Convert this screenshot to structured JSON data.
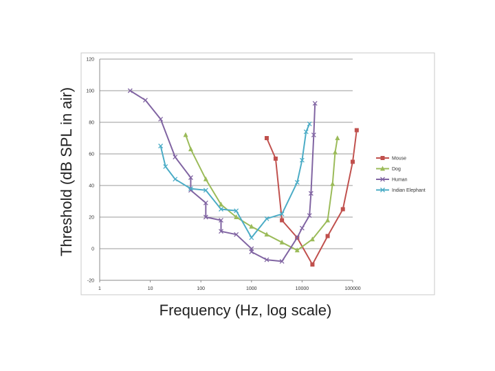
{
  "chart_data": {
    "type": "line",
    "title": "",
    "xlabel": "Frequency (Hz, log scale)",
    "ylabel": "Threshold (dB SPL in air)",
    "x_scale": "log",
    "xlim": [
      1,
      100000
    ],
    "ylim": [
      -20,
      120
    ],
    "x_ticks": [
      1,
      10,
      100,
      1000,
      10000,
      100000
    ],
    "x_tick_labels": [
      "1",
      "10",
      "100",
      "1000",
      "10000",
      "100000"
    ],
    "y_ticks": [
      -20,
      0,
      20,
      40,
      60,
      80,
      100,
      120
    ],
    "y_tick_labels": [
      "-20",
      "0",
      "20",
      "40",
      "60",
      "80",
      "100",
      "120"
    ],
    "grid": "horizontal",
    "legend_position": "right",
    "series": [
      {
        "name": "Mouse",
        "color": "#c0504d",
        "marker": "square",
        "points": [
          [
            2000,
            70
          ],
          [
            3000,
            57
          ],
          [
            4000,
            18
          ],
          [
            8000,
            7
          ],
          [
            16000,
            -10
          ],
          [
            32000,
            8
          ],
          [
            64000,
            25
          ],
          [
            100000,
            55
          ],
          [
            120000,
            75
          ]
        ]
      },
      {
        "name": "Dog",
        "color": "#9bbb59",
        "marker": "triangle",
        "points": [
          [
            50,
            72
          ],
          [
            63,
            63
          ],
          [
            125,
            44
          ],
          [
            250,
            28
          ],
          [
            500,
            20
          ],
          [
            1000,
            14
          ],
          [
            2000,
            9
          ],
          [
            4000,
            4
          ],
          [
            8000,
            -1
          ],
          [
            16000,
            6
          ],
          [
            32000,
            18
          ],
          [
            40000,
            41
          ],
          [
            45000,
            61
          ],
          [
            50000,
            70
          ]
        ]
      },
      {
        "name": "Human",
        "color": "#8064a2",
        "marker": "x",
        "points": [
          [
            4,
            100
          ],
          [
            8,
            94
          ],
          [
            16,
            82
          ],
          [
            31,
            58
          ],
          [
            63,
            45
          ],
          [
            63,
            37
          ],
          [
            125,
            29
          ],
          [
            125,
            20
          ],
          [
            250,
            18
          ],
          [
            250,
            11
          ],
          [
            500,
            9
          ],
          [
            1000,
            0
          ],
          [
            1000,
            -2
          ],
          [
            2000,
            -7
          ],
          [
            4000,
            -8
          ],
          [
            8000,
            7
          ],
          [
            10000,
            13
          ],
          [
            14000,
            21
          ],
          [
            15000,
            35
          ],
          [
            17000,
            72
          ],
          [
            18000,
            92
          ]
        ]
      },
      {
        "name": "Indian Elephant",
        "color": "#4bacc6",
        "marker": "x",
        "points": [
          [
            16,
            65
          ],
          [
            20,
            52
          ],
          [
            31,
            44
          ],
          [
            63,
            38
          ],
          [
            125,
            37
          ],
          [
            250,
            25
          ],
          [
            500,
            24
          ],
          [
            1000,
            7
          ],
          [
            2000,
            19
          ],
          [
            4000,
            22
          ],
          [
            8000,
            42
          ],
          [
            10000,
            56
          ],
          [
            12000,
            74
          ],
          [
            14000,
            79
          ]
        ]
      }
    ]
  }
}
